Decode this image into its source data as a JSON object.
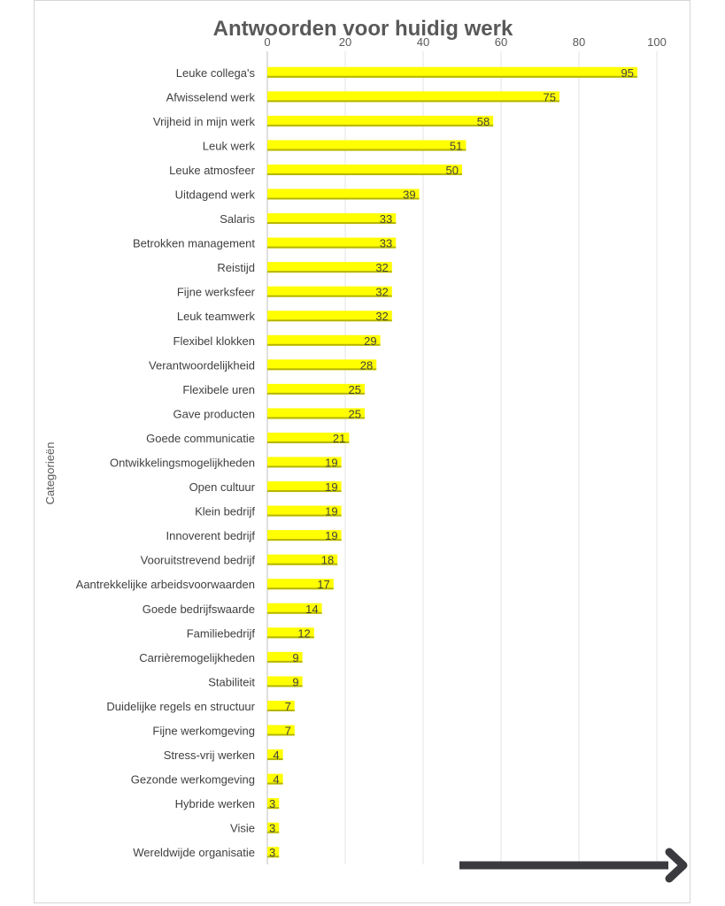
{
  "chart_data": {
    "type": "bar",
    "orientation": "horizontal",
    "title": "Antwoorden voor huidig werk",
    "xlabel": "",
    "ylabel": "Categorieën",
    "xlim": [
      0,
      100
    ],
    "xticks": [
      "0",
      "20",
      "40",
      "60",
      "80",
      "100"
    ],
    "x_axis_position": "top",
    "grid": true,
    "bar_color": "#ffff00",
    "bar_edge_color": "#b5b500",
    "categories": [
      "Leuke collega's",
      "Afwisselend werk",
      "Vrijheid in mijn werk",
      "Leuk werk",
      "Leuke atmosfeer",
      "Uitdagend werk",
      "Salaris",
      "Betrokken management",
      "Reistijd",
      "Fijne werksfeer",
      "Leuk teamwerk",
      "Flexibel klokken",
      "Verantwoordelijkheid",
      "Flexibele uren",
      "Gave producten",
      "Goede communicatie",
      "Ontwikkelingsmogelijkheden",
      "Open cultuur",
      "Klein bedrijf",
      "Innoverent bedrijf",
      "Vooruitstrevend bedrijf",
      "Aantrekkelijke arbeidsvoorwaarden",
      "Goede bedrijfswaarde",
      "Familiebedrijf",
      "Carrièremogelijkheden",
      "Stabiliteit",
      "Duidelijke regels en structuur",
      "Fijne werkomgeving",
      "Stress-vrij werken",
      "Gezonde werkomgeving",
      "Hybride werken",
      "Visie",
      "Wereldwijde organisatie"
    ],
    "values": [
      95,
      75,
      58,
      51,
      50,
      39,
      33,
      33,
      32,
      32,
      32,
      29,
      28,
      25,
      25,
      21,
      19,
      19,
      19,
      19,
      18,
      17,
      14,
      12,
      9,
      9,
      7,
      7,
      4,
      4,
      3,
      3,
      3
    ],
    "annotation": {
      "type": "arrow",
      "direction": "right",
      "color": "#3a3a3f"
    }
  }
}
